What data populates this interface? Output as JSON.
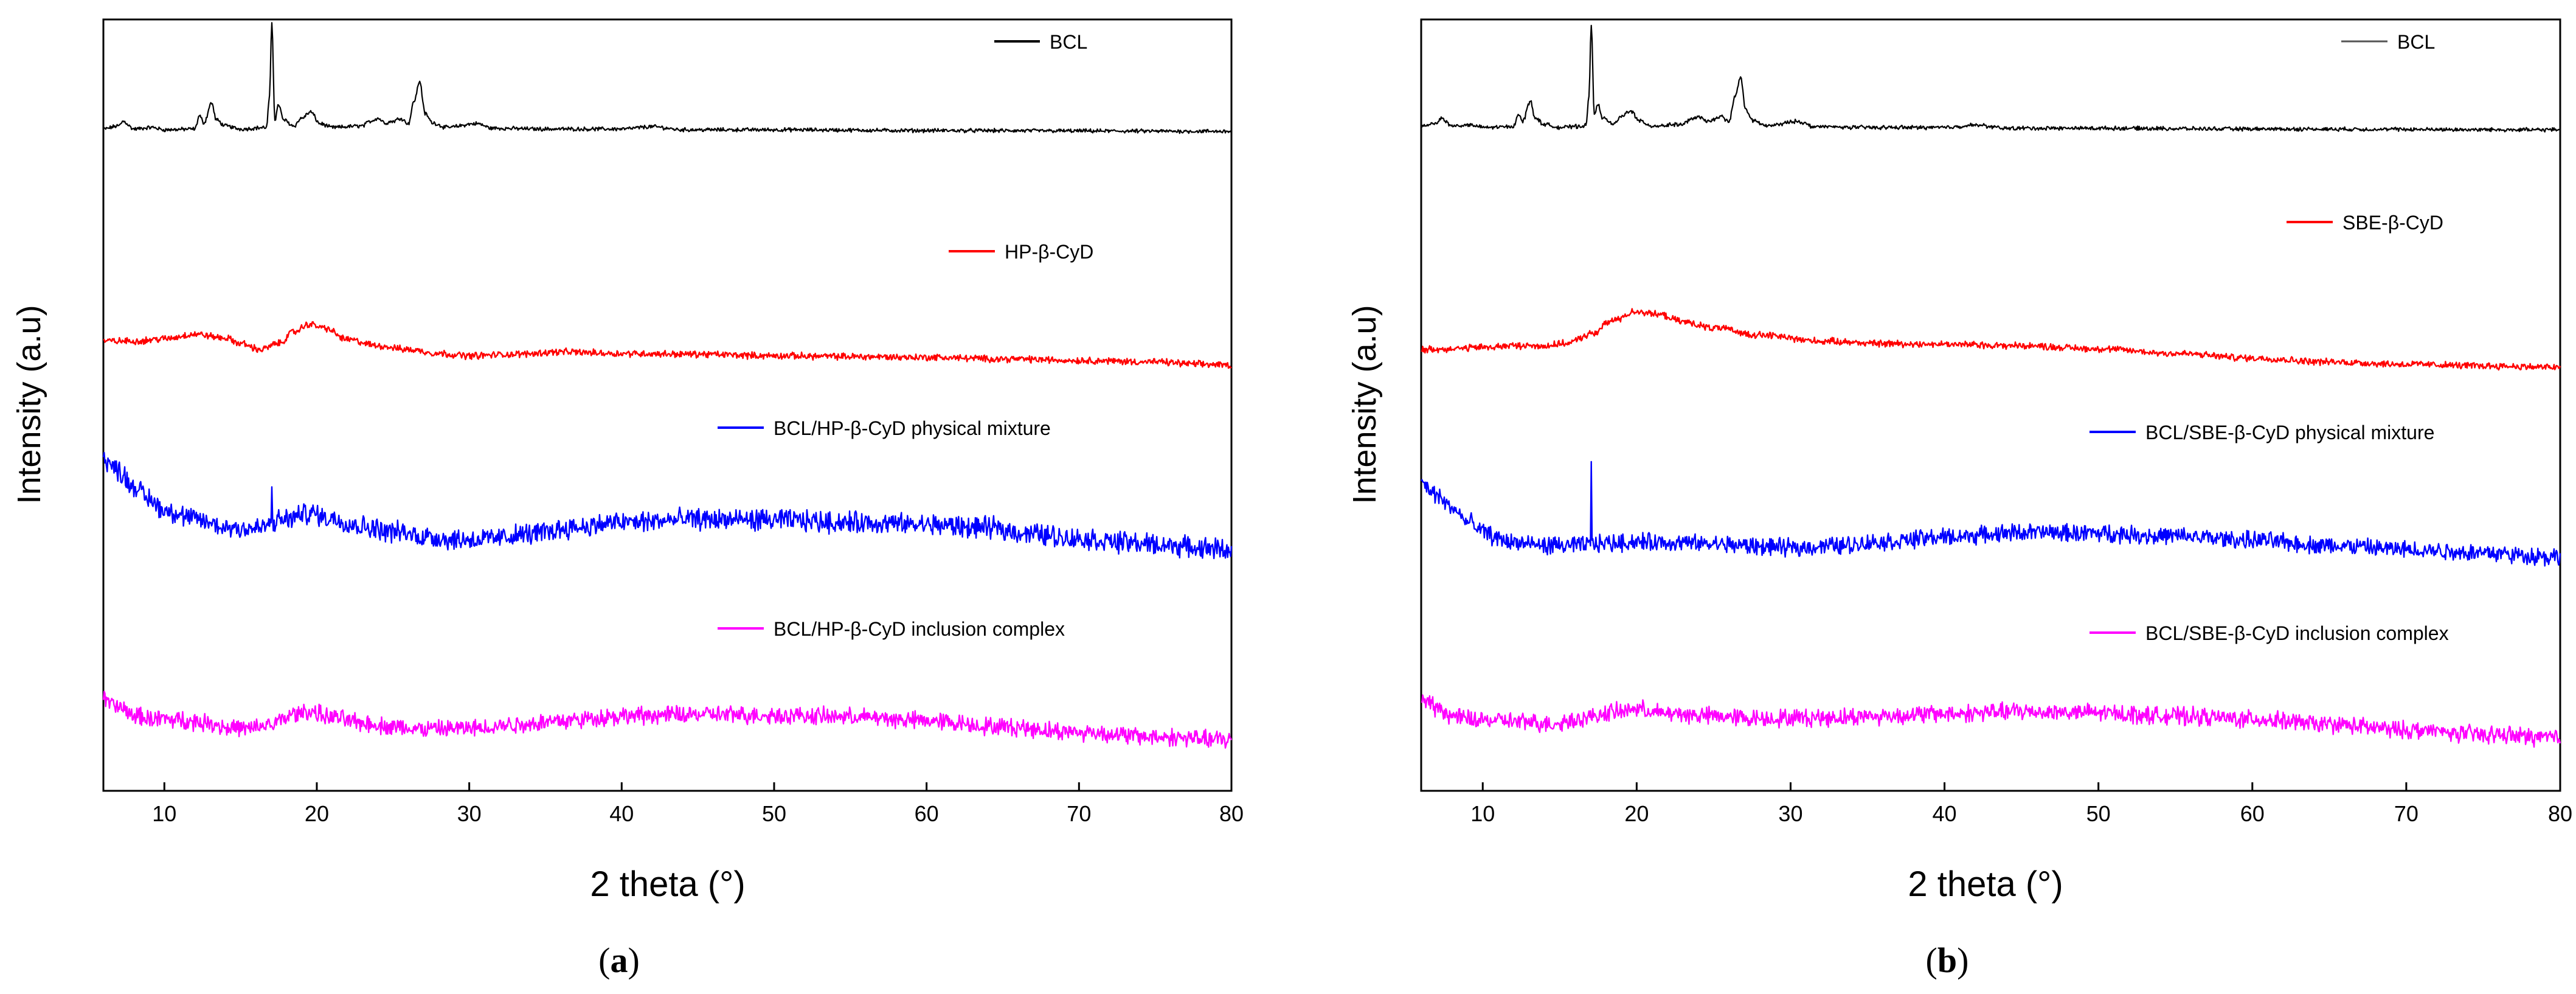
{
  "chart_data": [
    {
      "type": "line",
      "panel_label": "(a)",
      "panel_letter": "a",
      "xlabel": "2 theta (°)",
      "ylabel": "Intensity (a.u)",
      "xlim": [
        6,
        80
      ],
      "xticks": [
        10,
        20,
        30,
        40,
        50,
        60,
        70,
        80
      ],
      "y_ticks_shown": false,
      "series": [
        {
          "name": "BCL",
          "color": "#000000",
          "noise": 0.002,
          "points": [
            [
              6,
              0.858
            ],
            [
              7,
              0.862
            ],
            [
              7.3,
              0.868
            ],
            [
              8,
              0.858
            ],
            [
              9.2,
              0.86
            ],
            [
              10,
              0.857
            ],
            [
              12,
              0.858
            ],
            [
              12.3,
              0.875
            ],
            [
              12.6,
              0.866
            ],
            [
              13.1,
              0.892
            ],
            [
              13.4,
              0.87
            ],
            [
              14,
              0.862
            ],
            [
              15,
              0.858
            ],
            [
              16.7,
              0.86
            ],
            [
              16.9,
              0.9
            ],
            [
              17.05,
              0.995
            ],
            [
              17.25,
              0.87
            ],
            [
              17.5,
              0.89
            ],
            [
              17.8,
              0.87
            ],
            [
              18.5,
              0.862
            ],
            [
              19,
              0.872
            ],
            [
              19.6,
              0.88
            ],
            [
              20.2,
              0.865
            ],
            [
              21,
              0.86
            ],
            [
              23,
              0.862
            ],
            [
              23.5,
              0.868
            ],
            [
              24,
              0.872
            ],
            [
              24.5,
              0.866
            ],
            [
              25,
              0.868
            ],
            [
              25.5,
              0.872
            ],
            [
              26,
              0.865
            ],
            [
              26.4,
              0.895
            ],
            [
              26.75,
              0.92
            ],
            [
              27.1,
              0.878
            ],
            [
              27.6,
              0.866
            ],
            [
              28.5,
              0.86
            ],
            [
              30.5,
              0.865
            ],
            [
              31.5,
              0.859
            ],
            [
              35,
              0.858
            ],
            [
              40,
              0.858
            ],
            [
              42,
              0.861
            ],
            [
              44,
              0.857
            ],
            [
              50,
              0.857
            ],
            [
              60,
              0.856
            ],
            [
              80,
              0.855
            ]
          ]
        },
        {
          "name": "HP-β-CyD",
          "color": "#ff0000",
          "noise": 0.0035,
          "points": [
            [
              6,
              0.583
            ],
            [
              8,
              0.583
            ],
            [
              10,
              0.586
            ],
            [
              12,
              0.592
            ],
            [
              14,
              0.587
            ],
            [
              15,
              0.58
            ],
            [
              16.3,
              0.572
            ],
            [
              17.5,
              0.58
            ],
            [
              18.5,
              0.595
            ],
            [
              19.5,
              0.605
            ],
            [
              20.5,
              0.6
            ],
            [
              22,
              0.585
            ],
            [
              24,
              0.577
            ],
            [
              26,
              0.572
            ],
            [
              28,
              0.567
            ],
            [
              30,
              0.564
            ],
            [
              33,
              0.566
            ],
            [
              36,
              0.569
            ],
            [
              40,
              0.567
            ],
            [
              45,
              0.566
            ],
            [
              50,
              0.564
            ],
            [
              55,
              0.563
            ],
            [
              60,
              0.562
            ],
            [
              65,
              0.56
            ],
            [
              70,
              0.558
            ],
            [
              75,
              0.556
            ],
            [
              78,
              0.553
            ],
            [
              80,
              0.552
            ]
          ]
        },
        {
          "name": "BCL/HP-β-CyD physical mixture",
          "color": "#0000ff",
          "noise": 0.011,
          "points": [
            [
              6,
              0.43
            ],
            [
              7,
              0.415
            ],
            [
              8,
              0.395
            ],
            [
              9,
              0.378
            ],
            [
              10,
              0.364
            ],
            [
              12,
              0.352
            ],
            [
              14,
              0.342
            ],
            [
              16,
              0.34
            ],
            [
              18,
              0.352
            ],
            [
              19.5,
              0.36
            ],
            [
              21,
              0.353
            ],
            [
              23,
              0.343
            ],
            [
              25,
              0.336
            ],
            [
              27,
              0.33
            ],
            [
              29,
              0.326
            ],
            [
              31,
              0.326
            ],
            [
              34,
              0.333
            ],
            [
              37,
              0.342
            ],
            [
              40,
              0.348
            ],
            [
              45,
              0.352
            ],
            [
              50,
              0.351
            ],
            [
              55,
              0.348
            ],
            [
              60,
              0.345
            ],
            [
              64,
              0.341
            ],
            [
              67,
              0.333
            ],
            [
              70,
              0.327
            ],
            [
              73,
              0.322
            ],
            [
              76,
              0.318
            ],
            [
              78,
              0.315
            ],
            [
              80,
              0.313
            ]
          ],
          "spikes": [
            [
              17.05,
              0.048
            ]
          ]
        },
        {
          "name": "BCL/HP-β-CyD inclusion complex",
          "color": "#ff00ff",
          "noise": 0.009,
          "points": [
            [
              6,
              0.118
            ],
            [
              7,
              0.108
            ],
            [
              8,
              0.098
            ],
            [
              9,
              0.094
            ],
            [
              11,
              0.092
            ],
            [
              13,
              0.088
            ],
            [
              14,
              0.083
            ],
            [
              15.5,
              0.08
            ],
            [
              17,
              0.086
            ],
            [
              18.5,
              0.099
            ],
            [
              19.5,
              0.103
            ],
            [
              21,
              0.095
            ],
            [
              23,
              0.088
            ],
            [
              25,
              0.083
            ],
            [
              27,
              0.08
            ],
            [
              30,
              0.081
            ],
            [
              33,
              0.086
            ],
            [
              36,
              0.091
            ],
            [
              40,
              0.097
            ],
            [
              45,
              0.099
            ],
            [
              50,
              0.098
            ],
            [
              55,
              0.096
            ],
            [
              60,
              0.091
            ],
            [
              65,
              0.083
            ],
            [
              70,
              0.076
            ],
            [
              75,
              0.07
            ],
            [
              80,
              0.066
            ]
          ]
        }
      ],
      "legend": [
        "BCL",
        "HP-β-CyD",
        "BCL/HP-β-CyD physical mixture",
        "BCL/HP-β-CyD inclusion complex"
      ]
    },
    {
      "type": "line",
      "panel_label": "(b)",
      "panel_letter": "b",
      "xlabel": "2 theta (°)",
      "ylabel": "Intensity (a.u)",
      "xlim": [
        6,
        80
      ],
      "xticks": [
        10,
        20,
        30,
        40,
        50,
        60,
        70,
        80
      ],
      "y_ticks_shown": false,
      "series": [
        {
          "name": "BCL",
          "color": "#000000",
          "noise": 0.002,
          "points": [
            [
              6,
              0.862
            ],
            [
              7,
              0.866
            ],
            [
              7.3,
              0.872
            ],
            [
              8,
              0.862
            ],
            [
              9.2,
              0.863
            ],
            [
              10,
              0.86
            ],
            [
              12,
              0.861
            ],
            [
              12.3,
              0.878
            ],
            [
              12.6,
              0.868
            ],
            [
              13.1,
              0.895
            ],
            [
              13.4,
              0.872
            ],
            [
              14,
              0.864
            ],
            [
              15,
              0.86
            ],
            [
              16.7,
              0.862
            ],
            [
              16.9,
              0.9
            ],
            [
              17.05,
              0.995
            ],
            [
              17.25,
              0.875
            ],
            [
              17.5,
              0.89
            ],
            [
              17.8,
              0.872
            ],
            [
              18.5,
              0.864
            ],
            [
              19,
              0.874
            ],
            [
              19.6,
              0.882
            ],
            [
              20.2,
              0.868
            ],
            [
              21,
              0.862
            ],
            [
              23,
              0.864
            ],
            [
              23.5,
              0.87
            ],
            [
              24,
              0.874
            ],
            [
              24.5,
              0.868
            ],
            [
              25,
              0.87
            ],
            [
              25.5,
              0.874
            ],
            [
              26,
              0.868
            ],
            [
              26.4,
              0.9
            ],
            [
              26.75,
              0.925
            ],
            [
              27.1,
              0.882
            ],
            [
              27.6,
              0.868
            ],
            [
              28.5,
              0.862
            ],
            [
              30.5,
              0.868
            ],
            [
              31.5,
              0.861
            ],
            [
              35,
              0.86
            ],
            [
              40,
              0.86
            ],
            [
              42,
              0.863
            ],
            [
              44,
              0.859
            ],
            [
              50,
              0.859
            ],
            [
              60,
              0.858
            ],
            [
              80,
              0.857
            ]
          ]
        },
        {
          "name": "SBE-β-CyD",
          "color": "#ff0000",
          "noise": 0.0035,
          "points": [
            [
              6,
              0.572
            ],
            [
              8,
              0.573
            ],
            [
              10,
              0.575
            ],
            [
              12,
              0.577
            ],
            [
              14,
              0.577
            ],
            [
              15.5,
              0.58
            ],
            [
              17,
              0.592
            ],
            [
              18.5,
              0.61
            ],
            [
              20,
              0.622
            ],
            [
              21.5,
              0.617
            ],
            [
              23,
              0.608
            ],
            [
              25,
              0.6
            ],
            [
              28,
              0.591
            ],
            [
              32,
              0.583
            ],
            [
              36,
              0.58
            ],
            [
              40,
              0.579
            ],
            [
              45,
              0.577
            ],
            [
              50,
              0.573
            ],
            [
              55,
              0.567
            ],
            [
              60,
              0.561
            ],
            [
              65,
              0.556
            ],
            [
              70,
              0.553
            ],
            [
              75,
              0.551
            ],
            [
              80,
              0.549
            ]
          ]
        },
        {
          "name": "BCL/SBE-β-CyD physical mixture",
          "color": "#0000ff",
          "noise": 0.009,
          "points": [
            [
              6,
              0.399
            ],
            [
              7,
              0.383
            ],
            [
              8,
              0.367
            ],
            [
              9,
              0.349
            ],
            [
              10,
              0.336
            ],
            [
              11,
              0.327
            ],
            [
              12,
              0.322
            ],
            [
              14,
              0.318
            ],
            [
              16,
              0.318
            ],
            [
              18,
              0.321
            ],
            [
              20,
              0.323
            ],
            [
              22,
              0.322
            ],
            [
              25,
              0.32
            ],
            [
              28,
              0.317
            ],
            [
              30,
              0.315
            ],
            [
              33,
              0.318
            ],
            [
              36,
              0.323
            ],
            [
              40,
              0.329
            ],
            [
              45,
              0.335
            ],
            [
              50,
              0.334
            ],
            [
              55,
              0.33
            ],
            [
              60,
              0.325
            ],
            [
              65,
              0.318
            ],
            [
              70,
              0.313
            ],
            [
              75,
              0.309
            ],
            [
              78,
              0.305
            ],
            [
              80,
              0.303
            ]
          ],
          "spikes": [
            [
              17.05,
              0.105
            ]
          ]
        },
        {
          "name": "BCL/SBE-β-CyD inclusion complex",
          "color": "#ff00ff",
          "noise": 0.009,
          "points": [
            [
              6,
              0.118
            ],
            [
              7,
              0.108
            ],
            [
              8,
              0.097
            ],
            [
              9,
              0.093
            ],
            [
              11,
              0.091
            ],
            [
              13,
              0.089
            ],
            [
              14.5,
              0.087
            ],
            [
              16.5,
              0.094
            ],
            [
              18.5,
              0.102
            ],
            [
              20,
              0.106
            ],
            [
              22,
              0.1
            ],
            [
              25,
              0.097
            ],
            [
              28,
              0.094
            ],
            [
              32,
              0.095
            ],
            [
              36,
              0.097
            ],
            [
              40,
              0.1
            ],
            [
              45,
              0.103
            ],
            [
              50,
              0.101
            ],
            [
              55,
              0.097
            ],
            [
              60,
              0.093
            ],
            [
              65,
              0.086
            ],
            [
              70,
              0.079
            ],
            [
              75,
              0.073
            ],
            [
              80,
              0.069
            ]
          ]
        }
      ],
      "legend": [
        "BCL",
        "SBE-β-CyD",
        "BCL/SBE-β-CyD physical mixture",
        "BCL/SBE-β-CyD inclusion complex"
      ]
    }
  ]
}
